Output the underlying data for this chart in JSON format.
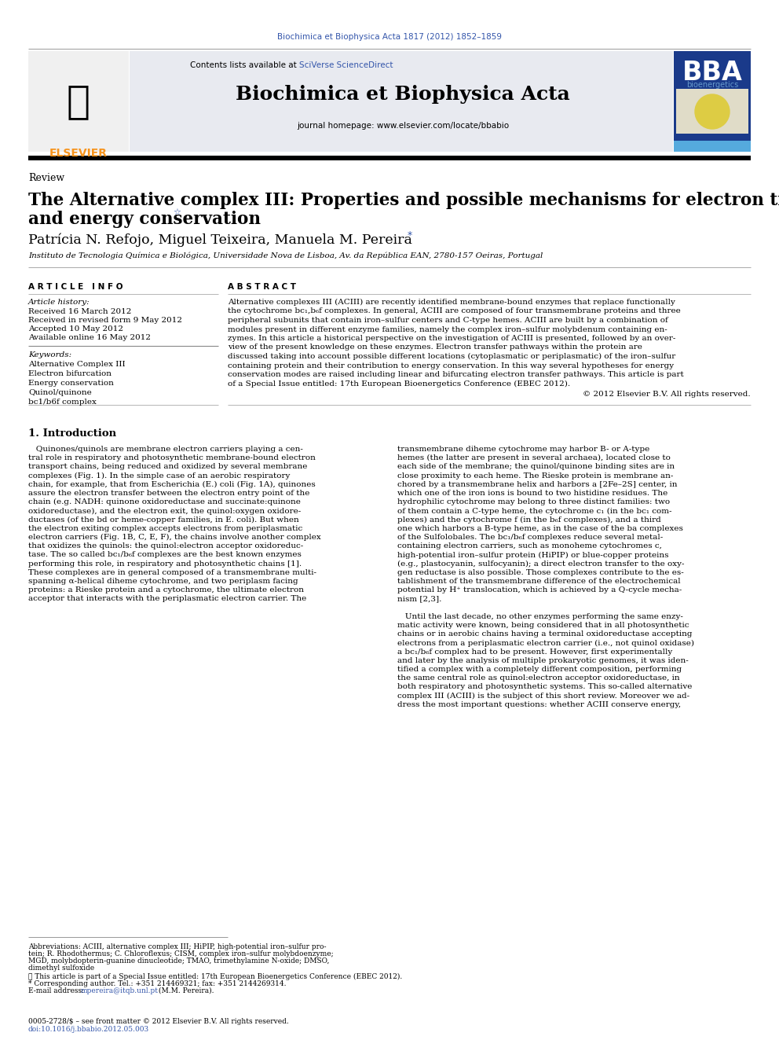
{
  "bg_color": "#ffffff",
  "top_citation": "Biochimica et Biophysica Acta 1817 (2012) 1852–1859",
  "top_citation_color": "#3355aa",
  "journal_header_bg": "#e8eaf0",
  "journal_title": "Biochimica et Biophysica Acta",
  "journal_url": "journal homepage: www.elsevier.com/locate/bbabio",
  "review_label": "Review",
  "article_title_line1": "The Alternative complex III: Properties and possible mechanisms for electron transfer",
  "article_title_line2": "and energy conservation",
  "authors_part1": "Patrícia N. Refojo, Miguel Teixeira, Manuela M. Pereira ",
  "affiliation": "Instituto de Tecnologia Química e Biológica, Universidade Nova de Lisboa, Av. da República EAN, 2780-157 Oeiras, Portugal",
  "article_info_header": "A R T I C L E   I N F O",
  "article_history_label": "Article history:",
  "received_1": "Received 16 March 2012",
  "received_2": "Received in revised form 9 May 2012",
  "accepted": "Accepted 10 May 2012",
  "available": "Available online 16 May 2012",
  "keywords_label": "Keywords:",
  "keywords": [
    "Alternative Complex III",
    "Electron bifurcation",
    "Energy conservation",
    "Quinol/quinone",
    "bc1/b6f complex"
  ],
  "abstract_header": "A B S T R A C T",
  "abstract_lines": [
    "Alternative complexes III (ACIII) are recently identified membrane-bound enzymes that replace functionally",
    "the cytochrome bc₁,b₆f complexes. In general, ACIII are composed of four transmembrane proteins and three",
    "peripheral subunits that contain iron–sulfur centers and C-type hemes. ACIII are built by a combination of",
    "modules present in different enzyme families, namely the complex iron–sulfur molybdenum containing en-",
    "zymes. In this article a historical perspective on the investigation of ACIII is presented, followed by an over-",
    "view of the present knowledge on these enzymes. Electron transfer pathways within the protein are",
    "discussed taking into account possible different locations (cytoplasmatic or periplasmatic) of the iron–sulfur",
    "containing protein and their contribution to energy conservation. In this way several hypotheses for energy",
    "conservation modes are raised including linear and bifurcating electron transfer pathways. This article is part",
    "of a Special Issue entitled: 17th European Bioenergetics Conference (EBEC 2012)."
  ],
  "copyright_line": "© 2012 Elsevier B.V. All rights reserved.",
  "intro_header": "1. Introduction",
  "intro_col1_lines": [
    "   Quinones/quinols are membrane electron carriers playing a cen-",
    "tral role in respiratory and photosynthetic membrane-bound electron",
    "transport chains, being reduced and oxidized by several membrane",
    "complexes (Fig. 1). In the simple case of an aerobic respiratory",
    "chain, for example, that from Escherichia (E.) coli (Fig. 1A), quinones",
    "assure the electron transfer between the electron entry point of the",
    "chain (e.g. NADH: quinone oxidoreductase and succinate:quinone",
    "oxidoreductase), and the electron exit, the quinol:oxygen oxidore-",
    "ductases (of the bd or heme-copper families, in E. coli). But when",
    "the electron exiting complex accepts electrons from periplasmatic",
    "electron carriers (Fig. 1B, C, E, F), the chains involve another complex",
    "that oxidizes the quinols: the quinol:electron acceptor oxidoreduc-",
    "tase. The so called bc₁/b₆f complexes are the best known enzymes",
    "performing this role, in respiratory and photosynthetic chains [1].",
    "These complexes are in general composed of a transmembrane multi-",
    "spanning α-helical diheme cytochrome, and two periplasm facing",
    "proteins: a Rieske protein and a cytochrome, the ultimate electron",
    "acceptor that interacts with the periplasmatic electron carrier. The"
  ],
  "intro_col2_para1_lines": [
    "transmembrane diheme cytochrome may harbor B- or A-type",
    "hemes (the latter are present in several archaea), located close to",
    "each side of the membrane; the quinol/quinone binding sites are in",
    "close proximity to each heme. The Rieske protein is membrane an-",
    "chored by a transmembrane helix and harbors a [2Fe–2S] center, in",
    "which one of the iron ions is bound to two histidine residues. The",
    "hydrophilic cytochrome may belong to three distinct families: two",
    "of them contain a C-type heme, the cytochrome c₁ (in the bc₁ com-",
    "plexes) and the cytochrome f (in the b₆f complexes), and a third",
    "one which harbors a B-type heme, as in the case of the ba complexes",
    "of the Sulfolobales. The bc₁/b₆f complexes reduce several metal-",
    "containing electron carriers, such as monoheme cytochromes c,",
    "high-potential iron–sulfur protein (HiPIP) or blue-copper proteins",
    "(e.g., plastocyanin, sulfocyanin); a direct electron transfer to the oxy-",
    "gen reductase is also possible. Those complexes contribute to the es-",
    "tablishment of the transmembrane difference of the electrochemical",
    "potential by H⁺ translocation, which is achieved by a Q-cycle mecha-",
    "nism [2,3]."
  ],
  "intro_col2_para2_lines": [
    "   Until the last decade, no other enzymes performing the same enzy-",
    "matic activity were known, being considered that in all photosynthetic",
    "chains or in aerobic chains having a terminal oxidoreductase accepting",
    "electrons from a periplasmatic electron carrier (i.e., not quinol oxidase)",
    "a bc₁/b₆f complex had to be present. However, first experimentally",
    "and later by the analysis of multiple prokaryotic genomes, it was iden-",
    "tified a complex with a completely different composition, performing",
    "the same central role as quinol:electron acceptor oxidoreductase, in",
    "both respiratory and photosynthetic systems. This so-called alternative",
    "complex III (ACIII) is the subject of this short review. Moreover we ad-",
    "dress the most important questions: whether ACIII conserve energy,"
  ],
  "footnote_abbrev_lines": [
    "Abbreviations: ACIII, alternative complex III; HiPIP, high-potential iron–sulfur pro-",
    "tein; R. Rhodothermus; C. Chloroflexus; CISM, complex iron–sulfur molybdoenzyme;",
    "MGD, molybdopterin-guanine dinucleotide; TMAO, trimethylamine N-oxide; DMSO,",
    "dimethyl sulfoxide"
  ],
  "footnote_star": "☆ This article is part of a Special Issue entitled: 17th European Bioenergetics Conference (EBEC 2012).",
  "footnote_corr": "* Corresponding author. Tel.: +351 214469321; fax: +351 2144269314.",
  "footnote_email_prefix": "E-mail address: ",
  "footnote_email_link": "mpereira@itqb.unl.pt",
  "footnote_email_suffix": " (M.M. Pereira).",
  "bottom_line1": "0005-2728/$ – see front matter © 2012 Elsevier B.V. All rights reserved.",
  "bottom_line2": "doi:10.1016/j.bbabio.2012.05.003",
  "elsevier_color": "#f7941d",
  "link_color": "#3355aa",
  "bba_blue": "#1a3a8a",
  "bba_light_blue": "#6699cc"
}
